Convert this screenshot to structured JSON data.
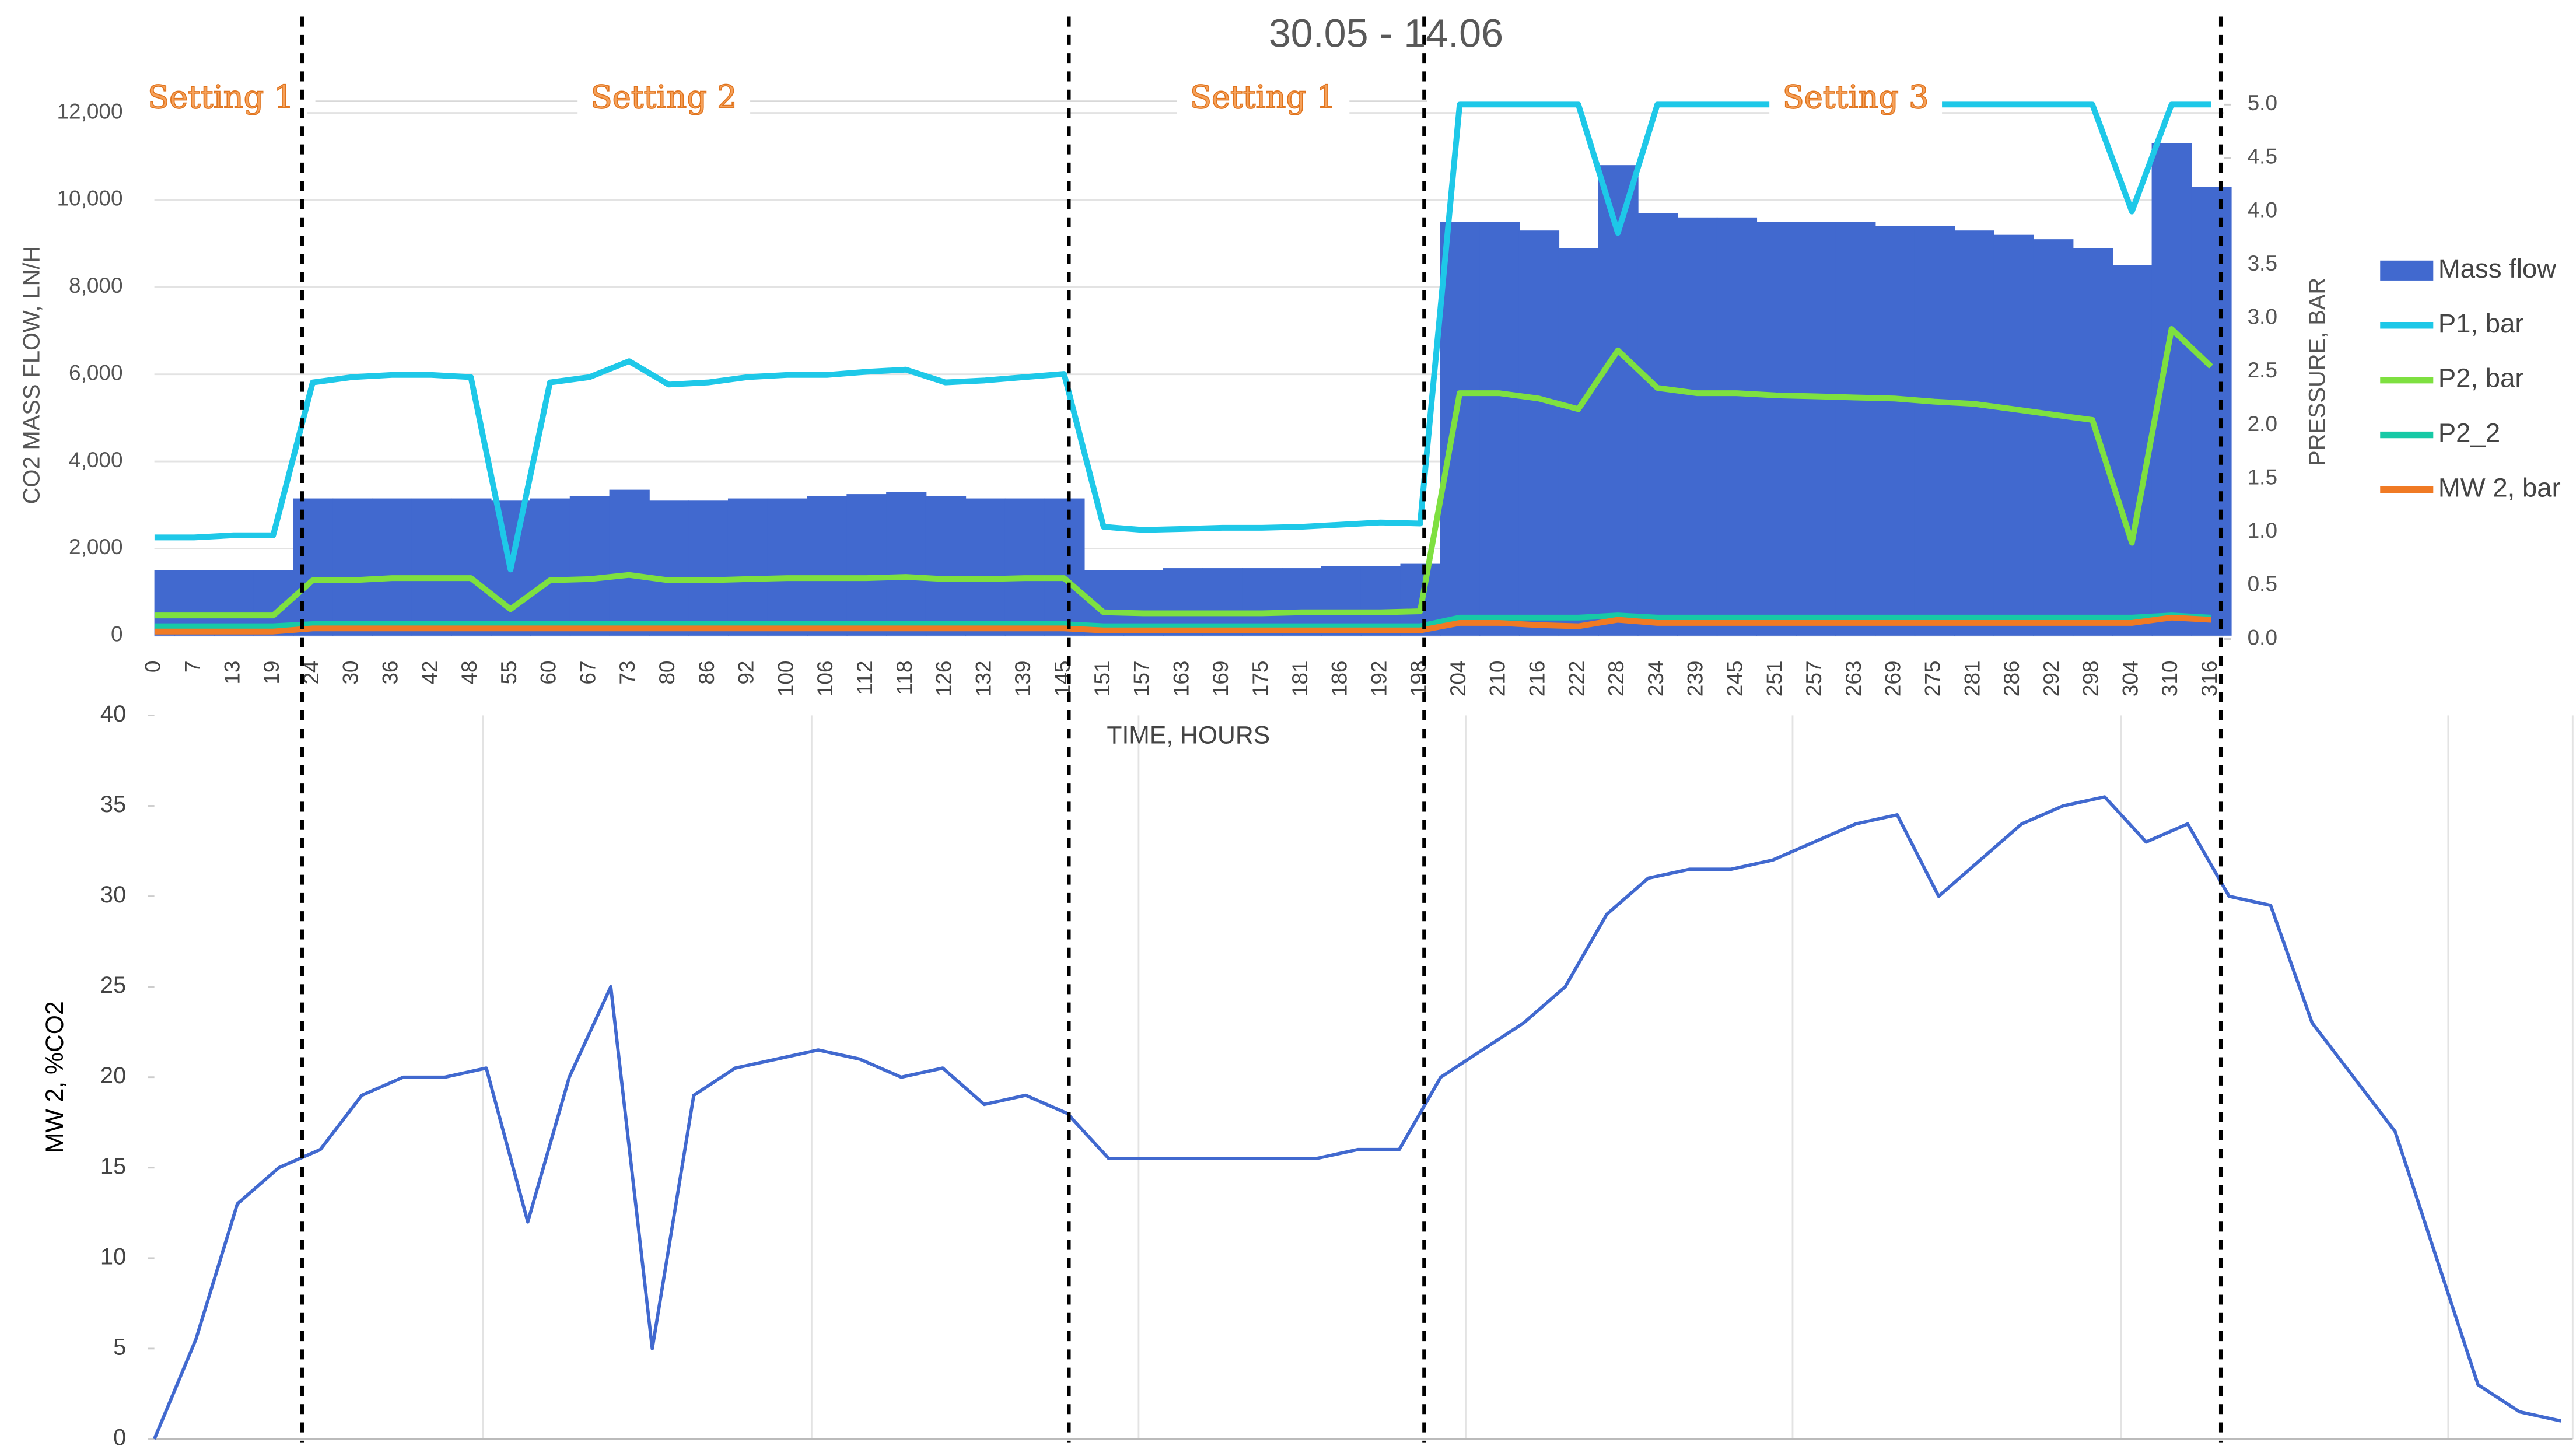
{
  "chart_data": [
    {
      "type": "bar_line",
      "title": "30.05 - 14.06",
      "ylabel": "CO2 MASS FLOW, LN/H",
      "y2label": "PRESSURE, BAR",
      "xlabel": "TIME, HOURS",
      "annotations": [
        "Setting 1",
        "Setting 2",
        "Setting 1",
        "Setting 3"
      ],
      "categories": [
        "0",
        "7",
        "13",
        "19",
        "24",
        "30",
        "36",
        "42",
        "48",
        "55",
        "60",
        "67",
        "73",
        "80",
        "86",
        "92",
        "100",
        "106",
        "112",
        "118",
        "126",
        "132",
        "139",
        "145",
        "151",
        "157",
        "163",
        "169",
        "175",
        "181",
        "186",
        "192",
        "198",
        "204",
        "210",
        "216",
        "222",
        "228",
        "234",
        "239",
        "245",
        "251",
        "257",
        "263",
        "269",
        "275",
        "281",
        "286",
        "292",
        "298",
        "304",
        "310",
        "316"
      ],
      "ylim": [
        0,
        12000
      ],
      "yticks": [
        0,
        {
          "value": 2000,
          "label": "2,000"
        },
        {
          "value": 4000,
          "label": "4,000"
        },
        {
          "value": 6000,
          "label": "6,000"
        },
        {
          "value": 8000,
          "label": "8,000"
        },
        {
          "value": 10000,
          "label": "10,000"
        },
        {
          "value": 12000,
          "label": "12,000"
        }
      ],
      "y2lim": [
        0,
        5
      ],
      "y2ticks": [
        {
          "value": 0,
          "label": "0.0"
        },
        {
          "value": 0.5,
          "label": "0.5"
        },
        {
          "value": 1,
          "label": "1.0"
        },
        {
          "value": 1.5,
          "label": "1.5"
        },
        {
          "value": 2,
          "label": "2.0"
        },
        {
          "value": 2.5,
          "label": "2.5"
        },
        {
          "value": 3,
          "label": "3.0"
        },
        {
          "value": 3.5,
          "label": "3.5"
        },
        {
          "value": 4,
          "label": "4.0"
        },
        {
          "value": 4.5,
          "label": "4.5"
        },
        {
          "value": 5,
          "label": "5.0"
        }
      ],
      "grid": true,
      "legend": "right",
      "series": [
        {
          "name": "Mass flow",
          "kind": "bar",
          "color": "#4169cf",
          "values": [
            1500,
            1500,
            1500,
            1500,
            3150,
            3150,
            3150,
            3150,
            3150,
            3100,
            3150,
            3200,
            3350,
            3100,
            3100,
            3150,
            3150,
            3200,
            3250,
            3300,
            3200,
            3150,
            3150,
            3150,
            1500,
            1500,
            1550,
            1550,
            1550,
            1550,
            1600,
            1600,
            1650,
            9500,
            9500,
            9300,
            8900,
            10800,
            9700,
            9600,
            9600,
            9500,
            9500,
            9500,
            9400,
            9400,
            9300,
            9200,
            9100,
            8900,
            8500,
            11300,
            10300
          ]
        },
        {
          "name": "P1, bar",
          "kind": "line",
          "axis": "y2",
          "color": "#1ec8e8",
          "values": [
            0.95,
            0.95,
            0.97,
            0.97,
            2.4,
            2.45,
            2.47,
            2.47,
            2.45,
            0.65,
            2.4,
            2.45,
            2.6,
            2.38,
            2.4,
            2.45,
            2.47,
            2.47,
            2.5,
            2.52,
            2.4,
            2.42,
            2.45,
            2.48,
            1.05,
            1.02,
            1.03,
            1.04,
            1.04,
            1.05,
            1.07,
            1.09,
            1.08,
            5,
            5,
            5,
            5,
            3.8,
            5,
            5,
            5,
            5,
            5,
            5,
            5,
            5,
            5,
            5,
            5,
            5,
            4,
            5,
            5
          ]
        },
        {
          "name": "P2, bar",
          "kind": "line",
          "axis": "y2",
          "color": "#7ee040",
          "values": [
            0.22,
            0.22,
            0.22,
            0.22,
            0.55,
            0.55,
            0.57,
            0.57,
            0.57,
            0.28,
            0.55,
            0.56,
            0.6,
            0.55,
            0.55,
            0.56,
            0.57,
            0.57,
            0.57,
            0.58,
            0.56,
            0.56,
            0.57,
            0.57,
            0.25,
            0.24,
            0.24,
            0.24,
            0.24,
            0.25,
            0.25,
            0.25,
            0.26,
            2.3,
            2.3,
            2.25,
            2.15,
            2.7,
            2.35,
            2.3,
            2.3,
            2.28,
            2.27,
            2.26,
            2.25,
            2.22,
            2.2,
            2.15,
            2.1,
            2.05,
            0.9,
            2.9,
            2.55
          ]
        },
        {
          "name": "P2_2",
          "kind": "line",
          "axis": "y2",
          "color": "#17c9a6",
          "values": [
            0.12,
            0.12,
            0.12,
            0.12,
            0.14,
            0.14,
            0.14,
            0.14,
            0.14,
            0.14,
            0.14,
            0.14,
            0.14,
            0.14,
            0.14,
            0.14,
            0.14,
            0.14,
            0.14,
            0.14,
            0.14,
            0.14,
            0.14,
            0.14,
            0.12,
            0.12,
            0.12,
            0.12,
            0.12,
            0.12,
            0.12,
            0.12,
            0.12,
            0.2,
            0.2,
            0.2,
            0.2,
            0.22,
            0.2,
            0.2,
            0.2,
            0.2,
            0.2,
            0.2,
            0.2,
            0.2,
            0.2,
            0.2,
            0.2,
            0.2,
            0.2,
            0.22,
            0.2
          ]
        },
        {
          "name": "MW 2, bar",
          "kind": "line",
          "axis": "y2",
          "color": "#f07a24",
          "values": [
            0.07,
            0.07,
            0.07,
            0.07,
            0.1,
            0.1,
            0.1,
            0.1,
            0.1,
            0.1,
            0.1,
            0.1,
            0.1,
            0.1,
            0.1,
            0.1,
            0.1,
            0.1,
            0.1,
            0.1,
            0.1,
            0.1,
            0.1,
            0.1,
            0.08,
            0.08,
            0.08,
            0.08,
            0.08,
            0.08,
            0.08,
            0.08,
            0.08,
            0.15,
            0.15,
            0.13,
            0.12,
            0.18,
            0.15,
            0.15,
            0.15,
            0.15,
            0.15,
            0.15,
            0.15,
            0.15,
            0.15,
            0.15,
            0.15,
            0.15,
            0.15,
            0.2,
            0.18
          ]
        }
      ]
    },
    {
      "type": "line",
      "ylabel": "MW 2, %CO2",
      "ylim": [
        0,
        40
      ],
      "yticks": [
        0,
        5,
        10,
        15,
        20,
        25,
        30,
        35,
        40
      ],
      "series": [
        {
          "name": "MW 2",
          "color": "#4169cf",
          "values": [
            0,
            5.5,
            13,
            15,
            16,
            19,
            20,
            20,
            20.5,
            12,
            20,
            25,
            5,
            19,
            20.5,
            21,
            21.5,
            21,
            20,
            20.5,
            18.5,
            19,
            18,
            15.5,
            15.5,
            15.5,
            15.5,
            15.5,
            15.5,
            16,
            16,
            20,
            21.5,
            23,
            25,
            29,
            31,
            31.5,
            31.5,
            32,
            33,
            34,
            34.5,
            30,
            32,
            34,
            35,
            35.5,
            33,
            34,
            30,
            29.5,
            23,
            20,
            17,
            10,
            3,
            1.5,
            1
          ]
        }
      ]
    }
  ]
}
